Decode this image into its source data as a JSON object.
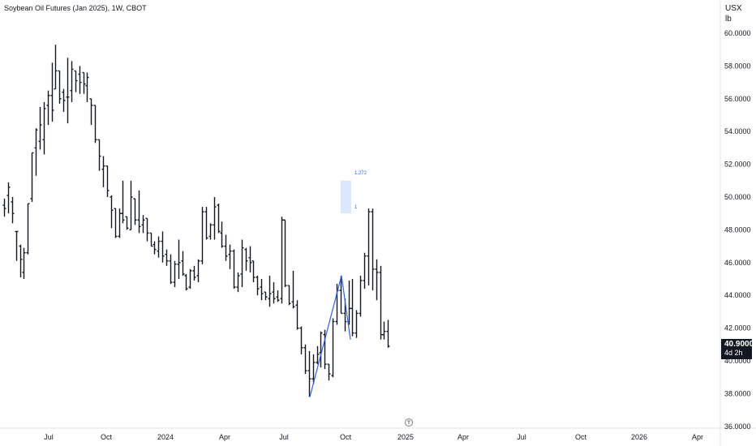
{
  "chart_title": "Soybean Oil Futures (Jan 2025), 1W, CBOT",
  "currency": "USX",
  "unit": "lb",
  "last_price": "40.9000",
  "countdown": "4d 2h",
  "fib_labels": {
    "level_1272": "1.272",
    "level_1": "1"
  },
  "colors": {
    "bars": "#131722",
    "trendline": "#2962ff",
    "fib_zone": "#dbe7fb",
    "axis_text": "#131722"
  },
  "watermark_icon": "tradingview-logo-icon",
  "chart_data": {
    "type": "ohlc",
    "title": "Soybean Oil Futures (Jan 2025), 1W, CBOT",
    "ylabel": "USX / lb",
    "ylim": [
      36.0,
      61.0
    ],
    "x_ticks": [
      "Jul",
      "Oct",
      "2024",
      "Apr",
      "Jul",
      "Oct",
      "2025",
      "Apr",
      "Jul",
      "Oct",
      "2026",
      "Apr"
    ],
    "y_ticks": [
      "36.0000",
      "38.0000",
      "40.0000",
      "42.0000",
      "44.0000",
      "46.0000",
      "48.0000",
      "50.0000",
      "52.0000",
      "54.0000",
      "56.0000",
      "58.0000",
      "60.0000"
    ],
    "series": [
      {
        "values": [
          [
            49.5,
            49.9,
            48.8,
            49.3
          ],
          [
            50.1,
            50.9,
            49.0,
            50.6
          ],
          [
            49.7,
            50.0,
            48.4,
            49.0
          ],
          [
            47.9,
            47.9,
            46.1,
            47.9
          ],
          [
            47.0,
            47.1,
            45.1,
            46.2
          ],
          [
            45.4,
            46.9,
            45.0,
            46.6
          ],
          [
            46.6,
            49.6,
            46.5,
            49.6
          ],
          [
            49.9,
            52.7,
            49.7,
            52.7
          ],
          [
            53.0,
            54.2,
            51.3,
            54.1
          ],
          [
            53.4,
            55.5,
            52.9,
            54.4
          ],
          [
            53.5,
            55.8,
            52.6,
            55.4
          ],
          [
            55.6,
            56.5,
            54.4,
            56.2
          ],
          [
            56.2,
            58.2,
            54.6,
            55.3
          ],
          [
            56.6,
            59.3,
            56.6,
            57.7
          ],
          [
            57.7,
            57.7,
            55.7,
            56.0
          ],
          [
            56.4,
            56.6,
            55.2,
            55.9
          ],
          [
            56.1,
            58.5,
            54.5,
            56.1
          ],
          [
            56.5,
            58.3,
            55.8,
            57.8
          ],
          [
            57.7,
            57.7,
            56.4,
            57.1
          ],
          [
            57.5,
            58.0,
            56.3,
            57.0
          ],
          [
            57.6,
            57.6,
            56.3,
            56.9
          ],
          [
            56.8,
            57.6,
            55.8,
            57.3
          ],
          [
            56.0,
            56.0,
            54.4,
            55.6
          ],
          [
            55.6,
            55.6,
            53.3,
            53.5
          ],
          [
            53.5,
            53.5,
            51.6,
            52.5
          ],
          [
            51.7,
            52.5,
            50.6,
            51.9
          ],
          [
            51.9,
            51.9,
            50.0,
            50.4
          ],
          [
            50.0,
            50.1,
            48.1,
            49.2
          ],
          [
            49.3,
            49.3,
            47.5,
            47.6
          ],
          [
            47.6,
            49.3,
            47.5,
            49.0
          ],
          [
            49.0,
            51.0,
            48.4,
            48.6
          ],
          [
            48.8,
            48.8,
            48.0,
            48.1
          ],
          [
            48.0,
            51.0,
            48.0,
            50.0
          ],
          [
            49.9,
            49.9,
            48.3,
            48.6
          ],
          [
            48.6,
            50.4,
            47.8,
            48.2
          ],
          [
            48.3,
            48.9,
            47.8,
            48.6
          ],
          [
            48.7,
            48.7,
            47.3,
            47.8
          ],
          [
            47.8,
            47.8,
            47.0,
            47.0
          ],
          [
            47.1,
            47.3,
            46.5,
            46.8
          ],
          [
            46.7,
            47.6,
            46.3,
            47.3
          ],
          [
            47.3,
            47.9,
            46.0,
            46.4
          ],
          [
            46.5,
            46.8,
            45.8,
            46.1
          ],
          [
            46.1,
            46.5,
            44.7,
            44.8
          ],
          [
            44.8,
            46.1,
            44.5,
            45.9
          ],
          [
            45.9,
            47.4,
            45.0,
            46.0
          ],
          [
            46.1,
            46.7,
            45.2,
            45.3
          ],
          [
            45.2,
            45.3,
            44.3,
            44.4
          ],
          [
            44.5,
            45.6,
            44.4,
            45.5
          ],
          [
            45.5,
            45.8,
            44.9,
            45.1
          ],
          [
            45.2,
            46.2,
            44.8,
            46.1
          ],
          [
            46.1,
            49.4,
            45.9,
            49.1
          ],
          [
            49.1,
            49.4,
            47.4,
            47.5
          ],
          [
            47.6,
            48.4,
            47.4,
            48.3
          ],
          [
            48.3,
            50.0,
            47.4,
            49.4
          ],
          [
            49.5,
            49.6,
            47.8,
            47.9
          ],
          [
            47.8,
            48.5,
            46.9,
            47.0
          ],
          [
            47.0,
            47.7,
            46.1,
            46.4
          ],
          [
            46.5,
            47.1,
            45.6,
            46.7
          ],
          [
            46.7,
            46.8,
            44.4,
            44.5
          ],
          [
            44.5,
            45.4,
            44.2,
            45.2
          ],
          [
            45.3,
            47.4,
            44.5,
            46.9
          ],
          [
            46.8,
            46.9,
            45.5,
            46.1
          ],
          [
            46.3,
            47.0,
            45.4,
            46.0
          ],
          [
            46.1,
            46.1,
            44.8,
            45.1
          ],
          [
            45.1,
            45.2,
            44.0,
            44.4
          ],
          [
            44.5,
            45.0,
            43.7,
            44.1
          ],
          [
            44.2,
            44.2,
            43.7,
            43.9
          ],
          [
            43.8,
            45.2,
            43.3,
            44.1
          ],
          [
            44.2,
            44.8,
            43.5,
            43.8
          ],
          [
            43.9,
            44.3,
            43.6,
            43.7
          ],
          [
            43.8,
            48.8,
            43.5,
            48.6
          ],
          [
            48.6,
            48.6,
            44.5,
            44.6
          ],
          [
            44.6,
            44.6,
            43.4,
            43.5
          ],
          [
            43.6,
            45.5,
            43.2,
            43.3
          ],
          [
            43.4,
            43.7,
            41.9,
            42.0
          ],
          [
            42.0,
            42.1,
            40.4,
            40.8
          ],
          [
            40.8,
            41.0,
            39.2,
            39.4
          ],
          [
            39.4,
            40.6,
            37.8,
            38.9
          ],
          [
            38.9,
            40.4,
            38.6,
            39.9
          ],
          [
            39.9,
            40.9,
            39.8,
            40.4
          ],
          [
            40.5,
            41.8,
            39.6,
            41.7
          ],
          [
            41.6,
            41.9,
            39.5,
            39.8
          ],
          [
            39.8,
            39.8,
            38.8,
            39.2
          ],
          [
            39.1,
            42.6,
            39.0,
            42.4
          ],
          [
            42.4,
            44.7,
            42.2,
            44.3
          ],
          [
            44.3,
            45.2,
            42.9,
            42.9
          ],
          [
            42.9,
            43.8,
            41.8,
            42.4
          ],
          [
            42.4,
            44.9,
            42.2,
            43.2
          ],
          [
            43.2,
            45.0,
            41.5,
            41.7
          ],
          [
            41.7,
            43.1,
            41.4,
            42.9
          ],
          [
            42.9,
            45.2,
            42.7,
            44.9
          ],
          [
            44.9,
            46.6,
            44.4,
            46.4
          ],
          [
            46.4,
            49.3,
            44.6,
            49.1
          ],
          [
            49.1,
            49.3,
            44.3,
            45.6
          ],
          [
            45.6,
            46.2,
            43.7,
            45.4
          ],
          [
            45.4,
            45.8,
            41.3,
            41.6
          ],
          [
            41.6,
            42.4,
            41.3,
            41.8
          ],
          [
            41.8,
            42.5,
            40.8,
            40.9
          ]
        ]
      }
    ]
  }
}
